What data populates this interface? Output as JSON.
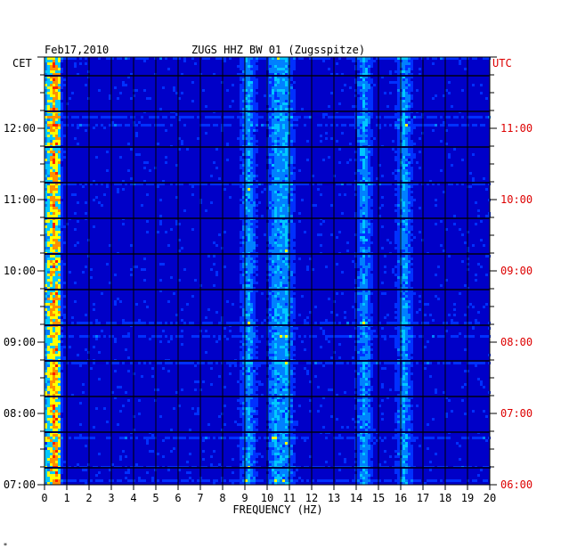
{
  "chart_data": {
    "type": "heatmap",
    "date": "Feb17,2010",
    "station": "ZUGS HHZ BW 01 (Zugsspitze)",
    "left_timezone": "CET",
    "right_timezone": "UTC",
    "xlabel": "FREQUENCY (HZ)",
    "xlim": [
      0,
      20
    ],
    "x_ticks": [
      "0",
      "1",
      "2",
      "3",
      "4",
      "5",
      "6",
      "7",
      "8",
      "9",
      "10",
      "11",
      "12",
      "13",
      "14",
      "15",
      "16",
      "17",
      "18",
      "19",
      "20"
    ],
    "y_ticks_cet": [
      "07:00",
      "08:00",
      "09:00",
      "10:00",
      "11:00",
      "12:00"
    ],
    "y_ticks_utc": [
      "06:00",
      "07:00",
      "08:00",
      "09:00",
      "10:00",
      "11:00"
    ],
    "time_range_cet": [
      "07:00",
      "13:00"
    ],
    "colors": {
      "background": "#0000c8",
      "low": "#0030ff",
      "mid": "#00c8ff",
      "high": "#ffff00",
      "peak": "#ff2000",
      "utc_text": "#dd0000",
      "cet_text": "#000000"
    },
    "energy_bands_hz": [
      0.4,
      9.1,
      10.3,
      10.8,
      14.3,
      16.1
    ],
    "footer_mark": "*"
  }
}
